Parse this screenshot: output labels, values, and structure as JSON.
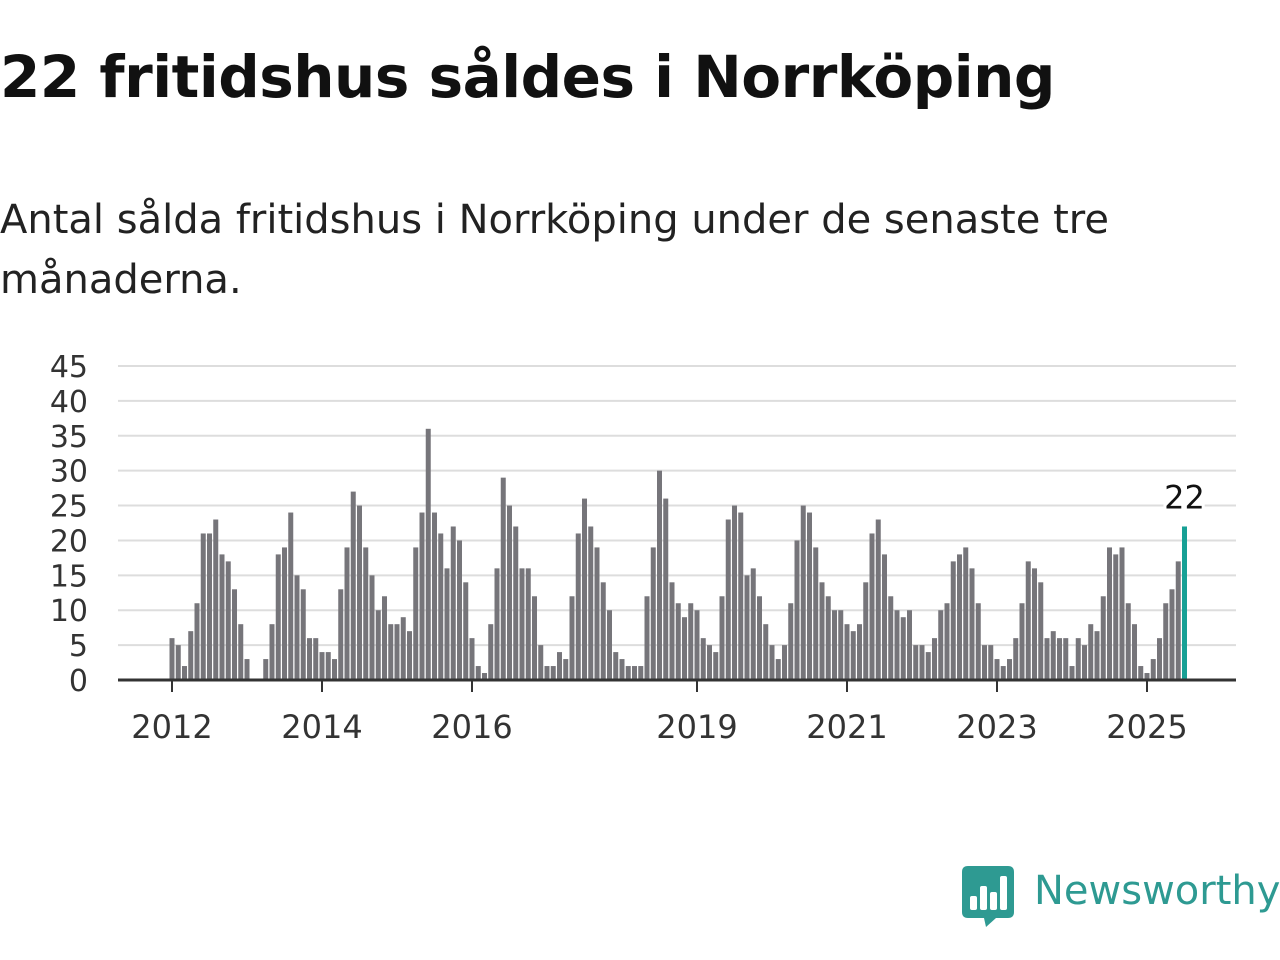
{
  "title": "22 fritidshus såldes i Norrköping",
  "subtitle": "Antal sålda fritidshus i Norrköping under de senaste tre månaderna.",
  "brand": {
    "name": "Newsworthy",
    "color": "#2e9a92",
    "icon": "newsworthy-bar-chart-logo-icon"
  },
  "colors": {
    "bar": "#76757a",
    "highlight": "#17a095",
    "grid": "#dddddd",
    "axis": "#333333"
  },
  "chart_data": {
    "type": "bar",
    "xlabel": "",
    "ylabel": "",
    "ylim": [
      0,
      45
    ],
    "yticks": [
      0,
      5,
      10,
      15,
      20,
      25,
      30,
      35,
      40,
      45
    ],
    "xticks": [
      "2012",
      "2014",
      "2016",
      "2019",
      "2021",
      "2023",
      "2025"
    ],
    "grid": true,
    "highlight_label": "22",
    "series": [
      {
        "values": [
          6,
          5,
          2,
          7,
          11,
          21,
          21,
          23,
          18,
          17,
          13,
          8,
          3,
          0,
          0,
          3,
          8,
          18,
          19,
          24,
          15,
          13,
          6,
          6,
          4,
          4,
          3,
          13,
          19,
          27,
          25,
          19,
          15,
          10,
          12,
          8,
          8,
          9,
          7,
          19,
          24,
          36,
          24,
          21,
          16,
          22,
          20,
          14,
          6,
          2,
          1,
          8,
          16,
          29,
          25,
          22,
          16,
          16,
          12,
          5,
          2,
          2,
          4,
          3,
          12,
          21,
          26,
          22,
          19,
          14,
          10,
          4,
          3,
          2,
          2,
          2,
          12,
          19,
          30,
          26,
          14,
          11,
          9,
          11,
          10,
          6,
          5,
          4,
          12,
          23,
          25,
          24,
          15,
          16,
          12,
          8,
          5,
          3,
          5,
          11,
          20,
          25,
          24,
          19,
          14,
          12,
          10,
          10,
          8,
          7,
          8,
          14,
          21,
          23,
          18,
          12,
          10,
          9,
          10,
          5,
          5,
          4,
          6,
          10,
          11,
          17,
          18,
          19,
          16,
          11,
          5,
          5,
          3,
          2,
          3,
          6,
          11,
          17,
          16,
          14,
          6,
          7,
          6,
          6,
          2,
          6,
          5,
          8,
          7,
          12,
          19,
          18,
          19,
          11,
          8,
          2,
          1,
          3,
          6,
          11,
          13,
          17,
          22
        ]
      }
    ]
  }
}
